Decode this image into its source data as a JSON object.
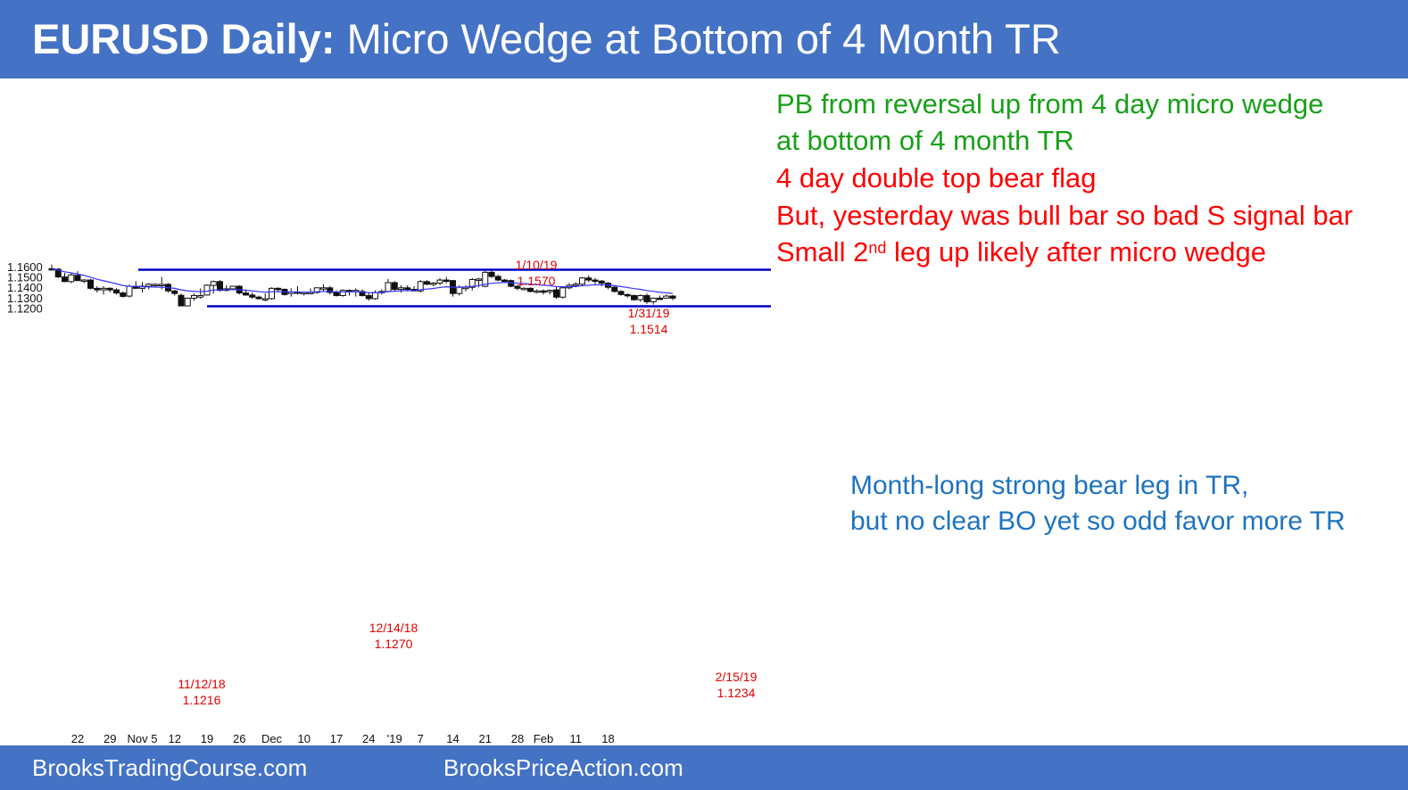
{
  "header": {
    "title_bold": "EURUSD Daily:",
    "title_rest": "Micro Wedge at Bottom of 4 Month TR"
  },
  "footer": {
    "left": "BrooksTradingCourse.com",
    "center": "BrooksPriceAction.com"
  },
  "notes": {
    "line1": "PB from reversal up from 4 day micro wedge",
    "line2": "at bottom of 4 month TR",
    "line3": "4 day double top bear flag",
    "line4": "But, yesterday was bull bar so bad S signal bar",
    "line5_pre": "Small 2",
    "line5_sup": "nd",
    "line5_post": " leg up likely after micro wedge",
    "right1": "Month-long strong bear leg in TR,",
    "right2": "but no clear BO yet so odd favor more TR"
  },
  "colors": {
    "header": "#4472c4",
    "green": "#18a018",
    "red": "#ff0000",
    "blue_text": "#1e73be",
    "line": "#0000cc",
    "ema": "#3333ff"
  },
  "chart_data": {
    "type": "candlestick",
    "title": "EURUSD Daily",
    "ylim": [
      1.115,
      1.165
    ],
    "yticks": [
      "1.1600",
      "1.1500",
      "1.1400",
      "1.1300",
      "1.1200"
    ],
    "xticks": [
      {
        "label": "22",
        "bar": 4
      },
      {
        "label": "29",
        "bar": 9
      },
      {
        "label": "Nov 5",
        "bar": 14
      },
      {
        "label": "12",
        "bar": 19
      },
      {
        "label": "19",
        "bar": 24
      },
      {
        "label": "26",
        "bar": 29
      },
      {
        "label": "Dec",
        "bar": 34
      },
      {
        "label": "10",
        "bar": 39
      },
      {
        "label": "17",
        "bar": 44
      },
      {
        "label": "24",
        "bar": 49
      },
      {
        "label": "'19",
        "bar": 53
      },
      {
        "label": "7",
        "bar": 57
      },
      {
        "label": "14",
        "bar": 62
      },
      {
        "label": "21",
        "bar": 67
      },
      {
        "label": "28",
        "bar": 72
      },
      {
        "label": "Feb",
        "bar": 76
      },
      {
        "label": "11",
        "bar": 81
      },
      {
        "label": "18",
        "bar": 86
      }
    ],
    "candles": [
      {
        "o": 1.158,
        "h": 1.162,
        "l": 1.157,
        "c": 1.1575
      },
      {
        "o": 1.1575,
        "h": 1.1585,
        "l": 1.149,
        "c": 1.15
      },
      {
        "o": 1.15,
        "h": 1.154,
        "l": 1.145,
        "c": 1.1455
      },
      {
        "o": 1.1455,
        "h": 1.154,
        "l": 1.144,
        "c": 1.152
      },
      {
        "o": 1.1515,
        "h": 1.1555,
        "l": 1.146,
        "c": 1.1465
      },
      {
        "o": 1.1465,
        "h": 1.148,
        "l": 1.144,
        "c": 1.147
      },
      {
        "o": 1.147,
        "h": 1.148,
        "l": 1.138,
        "c": 1.139
      },
      {
        "o": 1.139,
        "h": 1.141,
        "l": 1.135,
        "c": 1.1375
      },
      {
        "o": 1.1375,
        "h": 1.141,
        "l": 1.133,
        "c": 1.139
      },
      {
        "o": 1.139,
        "h": 1.14,
        "l": 1.135,
        "c": 1.1375
      },
      {
        "o": 1.1375,
        "h": 1.139,
        "l": 1.133,
        "c": 1.1345
      },
      {
        "o": 1.1345,
        "h": 1.136,
        "l": 1.13,
        "c": 1.1312
      },
      {
        "o": 1.1315,
        "h": 1.1425,
        "l": 1.13,
        "c": 1.141
      },
      {
        "o": 1.141,
        "h": 1.146,
        "l": 1.1385,
        "c": 1.139
      },
      {
        "o": 1.139,
        "h": 1.145,
        "l": 1.135,
        "c": 1.141
      },
      {
        "o": 1.141,
        "h": 1.144,
        "l": 1.138,
        "c": 1.143
      },
      {
        "o": 1.1428,
        "h": 1.144,
        "l": 1.14,
        "c": 1.1428
      },
      {
        "o": 1.1428,
        "h": 1.15,
        "l": 1.138,
        "c": 1.1428
      },
      {
        "o": 1.1428,
        "h": 1.144,
        "l": 1.135,
        "c": 1.1365
      },
      {
        "o": 1.1365,
        "h": 1.1375,
        "l": 1.132,
        "c": 1.134
      },
      {
        "o": 1.1322,
        "h": 1.134,
        "l": 1.1216,
        "c": 1.122
      },
      {
        "o": 1.122,
        "h": 1.13,
        "l": 1.1216,
        "c": 1.1295
      },
      {
        "o": 1.1295,
        "h": 1.134,
        "l": 1.127,
        "c": 1.132
      },
      {
        "o": 1.1305,
        "h": 1.139,
        "l": 1.129,
        "c": 1.132
      },
      {
        "o": 1.1325,
        "h": 1.143,
        "l": 1.132,
        "c": 1.142
      },
      {
        "o": 1.1418,
        "h": 1.1465,
        "l": 1.134,
        "c": 1.1455
      },
      {
        "o": 1.1455,
        "h": 1.147,
        "l": 1.136,
        "c": 1.137
      },
      {
        "o": 1.137,
        "h": 1.142,
        "l": 1.136,
        "c": 1.1385
      },
      {
        "o": 1.1385,
        "h": 1.141,
        "l": 1.137,
        "c": 1.141
      },
      {
        "o": 1.141,
        "h": 1.142,
        "l": 1.133,
        "c": 1.1345
      },
      {
        "o": 1.1345,
        "h": 1.138,
        "l": 1.132,
        "c": 1.1325
      },
      {
        "o": 1.1325,
        "h": 1.135,
        "l": 1.129,
        "c": 1.1305
      },
      {
        "o": 1.1305,
        "h": 1.132,
        "l": 1.128,
        "c": 1.129
      },
      {
        "o": 1.129,
        "h": 1.134,
        "l": 1.1265,
        "c": 1.129
      },
      {
        "o": 1.129,
        "h": 1.14,
        "l": 1.128,
        "c": 1.139
      },
      {
        "o": 1.139,
        "h": 1.14,
        "l": 1.136,
        "c": 1.138
      },
      {
        "o": 1.138,
        "h": 1.139,
        "l": 1.132,
        "c": 1.133
      },
      {
        "o": 1.134,
        "h": 1.139,
        "l": 1.131,
        "c": 1.1355
      },
      {
        "o": 1.1355,
        "h": 1.141,
        "l": 1.133,
        "c": 1.1345
      },
      {
        "o": 1.1345,
        "h": 1.136,
        "l": 1.132,
        "c": 1.135
      },
      {
        "o": 1.135,
        "h": 1.139,
        "l": 1.1335,
        "c": 1.135
      },
      {
        "o": 1.135,
        "h": 1.14,
        "l": 1.134,
        "c": 1.1395
      },
      {
        "o": 1.1385,
        "h": 1.143,
        "l": 1.136,
        "c": 1.1395
      },
      {
        "o": 1.1395,
        "h": 1.141,
        "l": 1.133,
        "c": 1.135
      },
      {
        "o": 1.135,
        "h": 1.137,
        "l": 1.131,
        "c": 1.132
      },
      {
        "o": 1.132,
        "h": 1.138,
        "l": 1.131,
        "c": 1.137
      },
      {
        "o": 1.137,
        "h": 1.138,
        "l": 1.132,
        "c": 1.136
      },
      {
        "o": 1.136,
        "h": 1.139,
        "l": 1.131,
        "c": 1.137
      },
      {
        "o": 1.136,
        "h": 1.138,
        "l": 1.131,
        "c": 1.132
      },
      {
        "o": 1.132,
        "h": 1.135,
        "l": 1.127,
        "c": 1.129
      },
      {
        "o": 1.129,
        "h": 1.137,
        "l": 1.128,
        "c": 1.135
      },
      {
        "o": 1.135,
        "h": 1.138,
        "l": 1.133,
        "c": 1.136
      },
      {
        "o": 1.136,
        "h": 1.148,
        "l": 1.135,
        "c": 1.1445
      },
      {
        "o": 1.1445,
        "h": 1.146,
        "l": 1.136,
        "c": 1.138
      },
      {
        "o": 1.138,
        "h": 1.142,
        "l": 1.135,
        "c": 1.1395
      },
      {
        "o": 1.1395,
        "h": 1.142,
        "l": 1.136,
        "c": 1.138
      },
      {
        "o": 1.138,
        "h": 1.141,
        "l": 1.136,
        "c": 1.1365
      },
      {
        "o": 1.1365,
        "h": 1.147,
        "l": 1.135,
        "c": 1.1455
      },
      {
        "o": 1.1455,
        "h": 1.147,
        "l": 1.142,
        "c": 1.143
      },
      {
        "o": 1.143,
        "h": 1.145,
        "l": 1.141,
        "c": 1.144
      },
      {
        "o": 1.144,
        "h": 1.149,
        "l": 1.142,
        "c": 1.147
      },
      {
        "o": 1.147,
        "h": 1.15,
        "l": 1.144,
        "c": 1.1465
      },
      {
        "o": 1.1465,
        "h": 1.147,
        "l": 1.131,
        "c": 1.134
      },
      {
        "o": 1.134,
        "h": 1.142,
        "l": 1.132,
        "c": 1.14
      },
      {
        "o": 1.14,
        "h": 1.142,
        "l": 1.136,
        "c": 1.14
      },
      {
        "o": 1.14,
        "h": 1.149,
        "l": 1.137,
        "c": 1.1475
      },
      {
        "o": 1.1475,
        "h": 1.149,
        "l": 1.14,
        "c": 1.148
      },
      {
        "o": 1.141,
        "h": 1.156,
        "l": 1.14,
        "c": 1.1545
      },
      {
        "o": 1.1545,
        "h": 1.157,
        "l": 1.149,
        "c": 1.1505
      },
      {
        "o": 1.1505,
        "h": 1.152,
        "l": 1.146,
        "c": 1.147
      },
      {
        "o": 1.147,
        "h": 1.148,
        "l": 1.144,
        "c": 1.146
      },
      {
        "o": 1.1465,
        "h": 1.1475,
        "l": 1.14,
        "c": 1.141
      },
      {
        "o": 1.141,
        "h": 1.142,
        "l": 1.137,
        "c": 1.139
      },
      {
        "o": 1.139,
        "h": 1.14,
        "l": 1.137,
        "c": 1.139
      },
      {
        "o": 1.139,
        "h": 1.14,
        "l": 1.135,
        "c": 1.136
      },
      {
        "o": 1.136,
        "h": 1.138,
        "l": 1.134,
        "c": 1.1365
      },
      {
        "o": 1.1365,
        "h": 1.138,
        "l": 1.133,
        "c": 1.136
      },
      {
        "o": 1.136,
        "h": 1.138,
        "l": 1.133,
        "c": 1.137
      },
      {
        "o": 1.1375,
        "h": 1.141,
        "l": 1.129,
        "c": 1.1305
      },
      {
        "o": 1.1305,
        "h": 1.141,
        "l": 1.129,
        "c": 1.1395
      },
      {
        "o": 1.1395,
        "h": 1.144,
        "l": 1.138,
        "c": 1.142
      },
      {
        "o": 1.142,
        "h": 1.145,
        "l": 1.14,
        "c": 1.143
      },
      {
        "o": 1.143,
        "h": 1.15,
        "l": 1.141,
        "c": 1.149
      },
      {
        "o": 1.149,
        "h": 1.1514,
        "l": 1.145,
        "c": 1.147
      },
      {
        "o": 1.147,
        "h": 1.149,
        "l": 1.142,
        "c": 1.146
      },
      {
        "o": 1.146,
        "h": 1.147,
        "l": 1.141,
        "c": 1.144
      },
      {
        "o": 1.144,
        "h": 1.145,
        "l": 1.138,
        "c": 1.14
      },
      {
        "o": 1.14,
        "h": 1.141,
        "l": 1.135,
        "c": 1.136
      },
      {
        "o": 1.136,
        "h": 1.137,
        "l": 1.132,
        "c": 1.133
      },
      {
        "o": 1.133,
        "h": 1.134,
        "l": 1.13,
        "c": 1.132
      },
      {
        "o": 1.132,
        "h": 1.133,
        "l": 1.127,
        "c": 1.128
      },
      {
        "o": 1.128,
        "h": 1.133,
        "l": 1.126,
        "c": 1.132
      },
      {
        "o": 1.132,
        "h": 1.134,
        "l": 1.124,
        "c": 1.126
      },
      {
        "o": 1.126,
        "h": 1.13,
        "l": 1.1234,
        "c": 1.1295
      },
      {
        "o": 1.1295,
        "h": 1.132,
        "l": 1.128,
        "c": 1.129
      },
      {
        "o": 1.1295,
        "h": 1.133,
        "l": 1.129,
        "c": 1.1315
      },
      {
        "o": 1.1315,
        "h": 1.1325,
        "l": 1.1275,
        "c": 1.1295
      }
    ],
    "ema": [
      1.158,
      1.1565,
      1.155,
      1.154,
      1.1528,
      1.1515,
      1.1497,
      1.1478,
      1.1463,
      1.1449,
      1.1434,
      1.1417,
      1.141,
      1.1408,
      1.1406,
      1.1404,
      1.1402,
      1.14,
      1.1396,
      1.139,
      1.1375,
      1.1365,
      1.1361,
      1.1358,
      1.1362,
      1.1374,
      1.1374,
      1.1375,
      1.1379,
      1.1376,
      1.1371,
      1.1365,
      1.1358,
      1.1352,
      1.1356,
      1.1358,
      1.1355,
      1.1355,
      1.1354,
      1.1353,
      1.1353,
      1.1357,
      1.136,
      1.1359,
      1.1355,
      1.1356,
      1.1356,
      1.1358,
      1.1354,
      1.1348,
      1.1348,
      1.1349,
      1.1359,
      1.1362,
      1.1366,
      1.1368,
      1.1368,
      1.1377,
      1.1383,
      1.1389,
      1.1398,
      1.1405,
      1.1402,
      1.1402,
      1.1402,
      1.1409,
      1.1416,
      1.143,
      1.1439,
      1.1443,
      1.1447,
      1.1444,
      1.144,
      1.1436,
      1.143,
      1.1425,
      1.142,
      1.1416,
      1.1406,
      1.1405,
      1.1406,
      1.1408,
      1.1415,
      1.142,
      1.1424,
      1.1425,
      1.1422,
      1.1416,
      1.1407,
      1.1398,
      1.1387,
      1.138,
      1.1368,
      1.136,
      1.1352,
      1.1347,
      1.1341
    ],
    "lines": {
      "tr_top": 1.157,
      "tr_bottom": 1.1216
    },
    "annotations": {
      "a1": {
        "date": "1/10/19",
        "value": "1.1570"
      },
      "a2": {
        "date": "1/31/19",
        "value": "1.1514"
      },
      "a3": {
        "date": "12/14/18",
        "value": "1.1270"
      },
      "a4": {
        "date": "11/12/18",
        "value": "1.1216"
      },
      "a5": {
        "date": "2/15/19",
        "value": "1.1234"
      }
    }
  }
}
